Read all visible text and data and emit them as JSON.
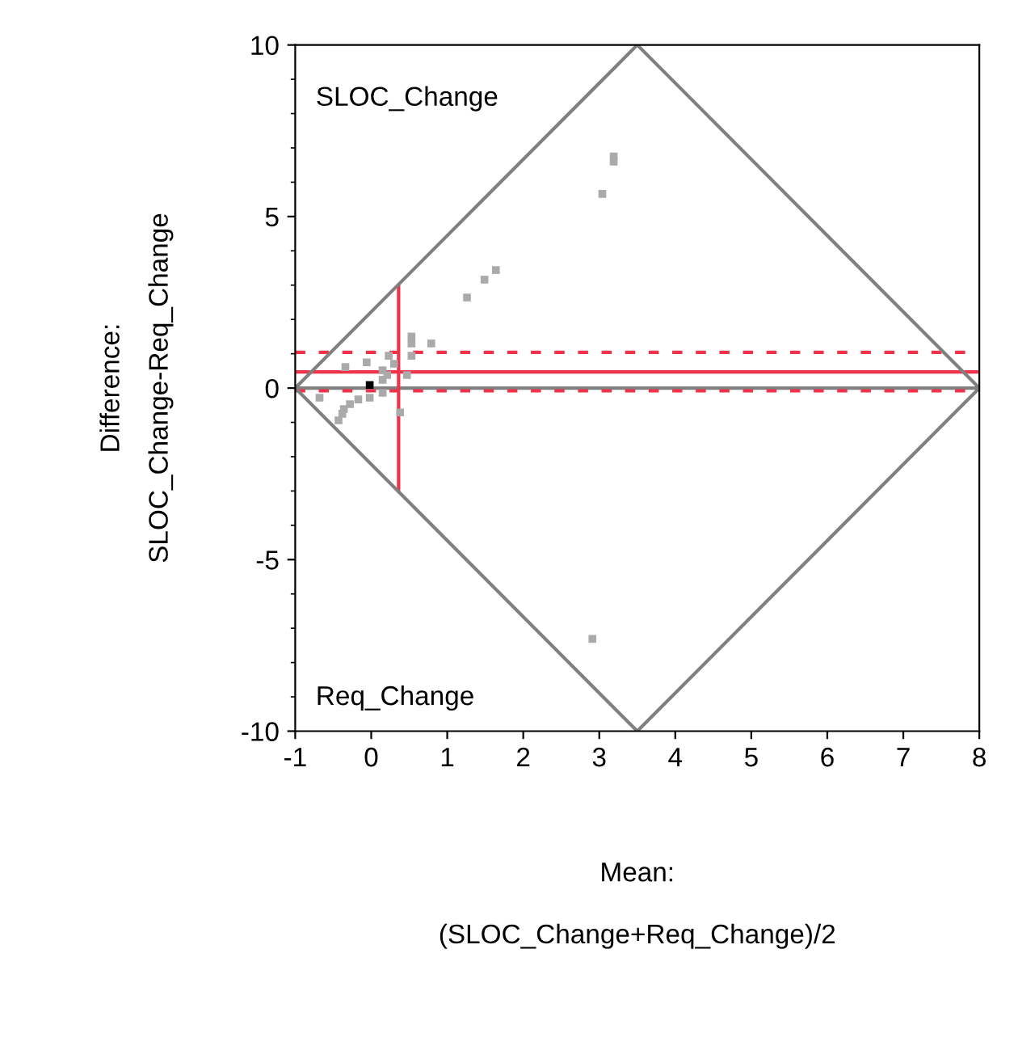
{
  "chart_data": {
    "type": "scatter",
    "xlabel": "Mean:\n\n(SLOC_Change+Req_Change)/2",
    "ylabel": "Difference:\nSLOC_Change-Req_Change",
    "xlim": [
      -1,
      8
    ],
    "ylim": [
      -10,
      10
    ],
    "xticks": [
      -1,
      0,
      1,
      2,
      3,
      4,
      5,
      6,
      7,
      8
    ],
    "yticks": [
      -10,
      -5,
      0,
      5,
      10
    ],
    "grid": false,
    "marker": "square",
    "series": [
      {
        "type": "line",
        "color": "#808080",
        "marker": "none",
        "x": [
          -1,
          3.5,
          8
        ],
        "values": [
          0,
          10,
          0
        ]
      },
      {
        "type": "line",
        "color": "#808080",
        "marker": "none",
        "x": [
          -1,
          3.5,
          8
        ],
        "values": [
          0,
          -10,
          0
        ]
      },
      {
        "x": [
          1.26,
          0.53,
          0.53,
          0.79,
          0.23,
          0.53,
          -0.06,
          -0.34,
          0.3,
          0.15,
          0.21,
          0.47,
          0.15,
          -0.02,
          -0.68,
          -0.02,
          -0.17,
          -0.28,
          -0.36,
          -0.38,
          -0.43,
          0.38,
          0.15,
          1.49,
          1.64,
          3.19,
          3.19,
          3.04,
          2.91
        ],
        "values": [
          2.64,
          1.5,
          1.3,
          1.3,
          0.94,
          0.94,
          0.75,
          0.61,
          0.71,
          0.52,
          0.38,
          0.38,
          0.24,
          0.09,
          -0.28,
          -0.28,
          -0.33,
          -0.47,
          -0.61,
          -0.75,
          -0.94,
          -0.71,
          -0.14,
          3.16,
          3.44,
          6.75,
          6.6,
          5.66,
          -7.31
        ],
        "colors": [
          "#aaaaaa",
          "#aaaaaa",
          "#aaaaaa",
          "#aaaaaa",
          "#aaaaaa",
          "#aaaaaa",
          "#aaaaaa",
          "#aaaaaa",
          "#aaaaaa",
          "#aaaaaa",
          "#aaaaaa",
          "#aaaaaa",
          "#aaaaaa",
          "#000000",
          "#aaaaaa",
          "#aaaaaa",
          "#aaaaaa",
          "#aaaaaa",
          "#aaaaaa",
          "#aaaaaa",
          "#aaaaaa",
          "#aaaaaa",
          "#aaaaaa",
          "#aaaaaa",
          "#aaaaaa",
          "#aaaaaa",
          "#aaaaaa",
          "#aaaaaa",
          "#aaaaaa"
        ]
      }
    ],
    "ref_lines": [
      {
        "axis": "y",
        "value": 0,
        "color": "#808080",
        "line_style": "solid"
      },
      {
        "axis": "y",
        "value": 0.47,
        "color": "#f0334b",
        "line_style": "solid"
      },
      {
        "axis": "y",
        "value": 1.04,
        "color": "#f0334b",
        "line_style": "dashed"
      },
      {
        "axis": "y",
        "value": -0.08,
        "color": "#f0334b",
        "line_style": "dashed"
      },
      {
        "axis": "x",
        "value": 0.36,
        "color": "#f0334b",
        "line_style": "solid"
      }
    ],
    "annotations": [
      "SLOC_Change",
      "Req_Change"
    ]
  }
}
